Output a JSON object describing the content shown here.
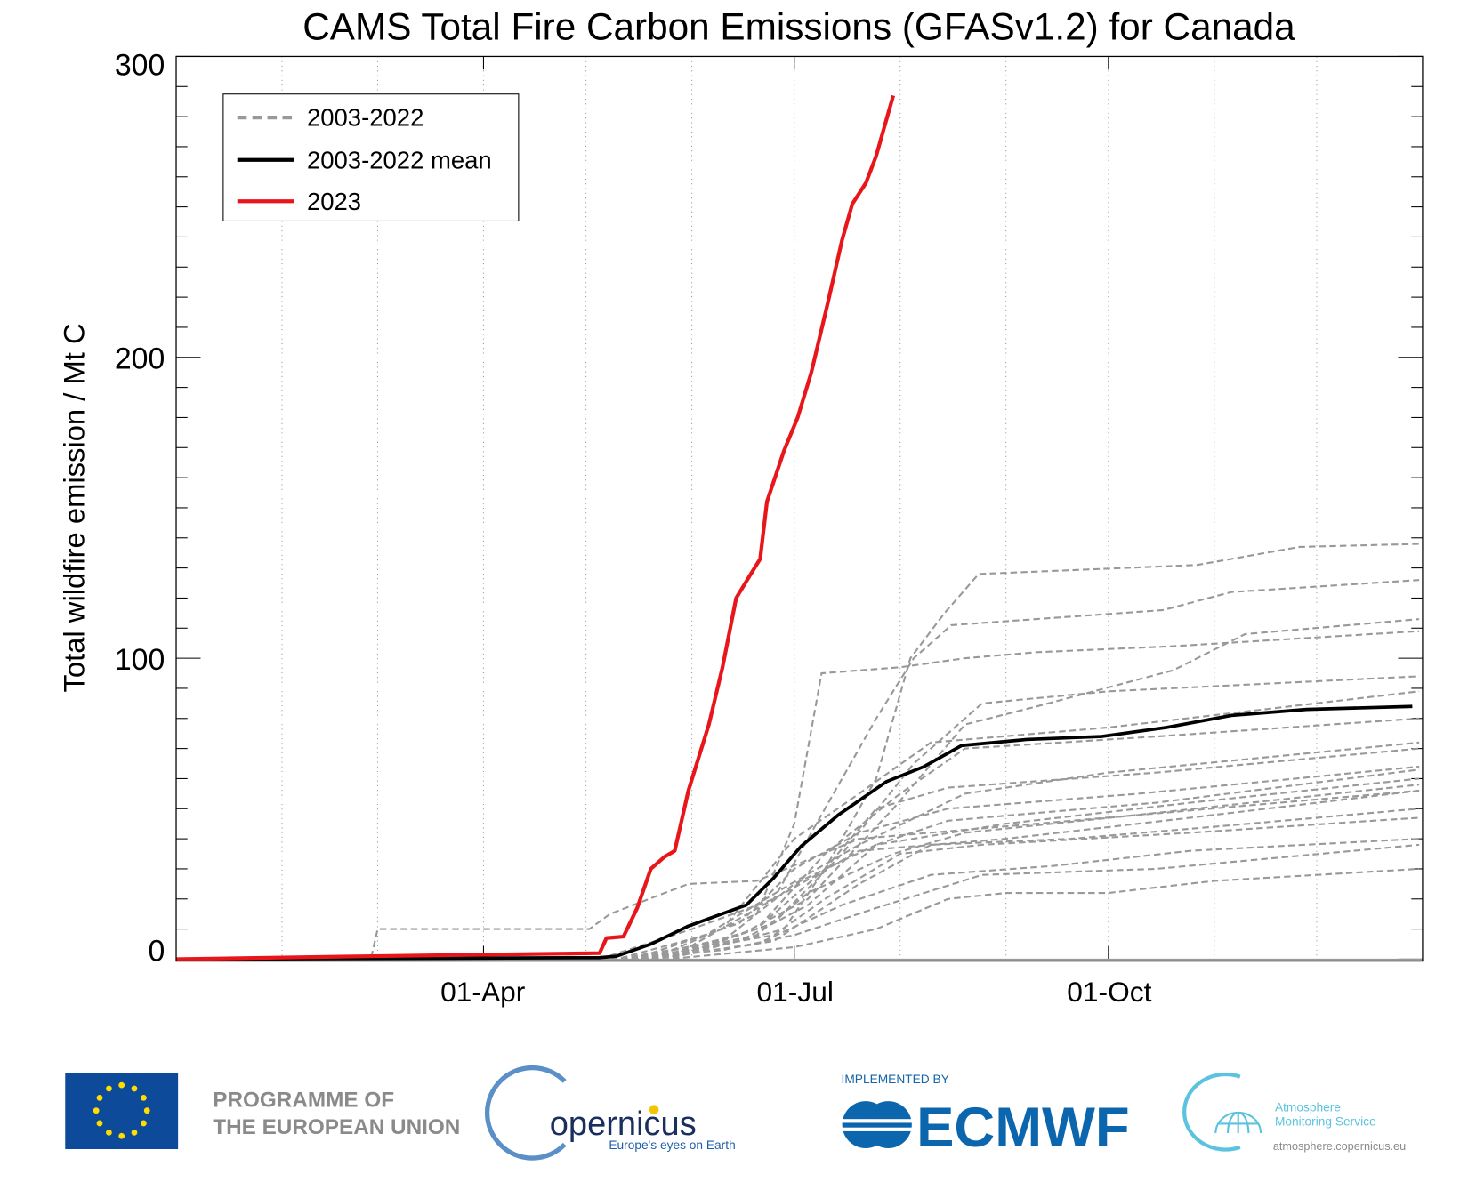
{
  "chart_data": {
    "type": "line",
    "title": "CAMS Total Fire Carbon Emissions (GFASv1.2) for Canada",
    "xlabel": "",
    "ylabel": "Total wildfire emission / Mt C",
    "x_format": "MM-DD",
    "xlim": [
      "01-01",
      "12-31"
    ],
    "ylim": [
      0,
      300
    ],
    "x_ticks": [
      "01-Apr",
      "01-Jul",
      "01-Oct"
    ],
    "y_ticks": [
      "0",
      "100",
      "200",
      "300"
    ],
    "grid": "vertical dotted lines at the first of each month",
    "legend": {
      "placement": "top-left",
      "entries": [
        "2003-2022",
        "2003-2022 mean",
        "2023"
      ]
    },
    "colors": {
      "past_years": "#999999",
      "mean": "#000000",
      "current": "#e8161b"
    },
    "series": [
      {
        "name": "2023",
        "style": "solid-red",
        "points": [
          [
            "01-01",
            0
          ],
          [
            "02-28",
            1
          ],
          [
            "05-05",
            2
          ],
          [
            "05-07",
            7
          ],
          [
            "05-12",
            7.5
          ],
          [
            "05-16",
            17
          ],
          [
            "05-20",
            30
          ],
          [
            "05-24",
            34
          ],
          [
            "05-27",
            36
          ],
          [
            "05-31",
            56
          ],
          [
            "06-06",
            78
          ],
          [
            "06-10",
            97
          ],
          [
            "06-14",
            120
          ],
          [
            "06-18",
            127.5
          ],
          [
            "06-21",
            133
          ],
          [
            "06-23",
            152
          ],
          [
            "06-28",
            169
          ],
          [
            "07-02",
            180
          ],
          [
            "07-06",
            195
          ],
          [
            "07-11",
            219
          ],
          [
            "07-15",
            239
          ],
          [
            "07-18",
            251
          ],
          [
            "07-22",
            258
          ],
          [
            "07-25",
            267
          ],
          [
            "07-27",
            275
          ],
          [
            "07-30",
            287
          ]
        ]
      },
      {
        "name": "2003-2022 mean",
        "style": "solid-black",
        "points": [
          [
            "01-01",
            0
          ],
          [
            "05-05",
            0.5
          ],
          [
            "05-10",
            1
          ],
          [
            "05-20",
            5
          ],
          [
            "05-31",
            11
          ],
          [
            "06-17",
            18
          ],
          [
            "06-25",
            27
          ],
          [
            "07-03",
            37.5
          ],
          [
            "07-14",
            48
          ],
          [
            "07-28",
            59
          ],
          [
            "08-08",
            64
          ],
          [
            "08-19",
            71
          ],
          [
            "09-07",
            73
          ],
          [
            "09-29",
            74
          ],
          [
            "10-18",
            77
          ],
          [
            "11-06",
            81
          ],
          [
            "11-28",
            83
          ],
          [
            "12-29",
            84
          ]
        ]
      },
      {
        "name": "2003-2022",
        "style": "dashed-grey",
        "years": [
          [
            [
              "01-01",
              0
            ],
            [
              "05-20",
              0
            ],
            [
              "06-20",
              10
            ],
            [
              "07-10",
              30
            ],
            [
              "07-25",
              60
            ],
            [
              "08-04",
              100
            ],
            [
              "08-14",
              115
            ],
            [
              "08-24",
              128
            ],
            [
              "10-27",
              131
            ],
            [
              "11-26",
              137
            ],
            [
              "12-31",
              138
            ]
          ],
          [
            [
              "01-01",
              0
            ],
            [
              "05-25",
              0
            ],
            [
              "06-25",
              20
            ],
            [
              "07-10",
              50
            ],
            [
              "07-25",
              80
            ],
            [
              "08-05",
              100
            ],
            [
              "08-16",
              111
            ],
            [
              "10-17",
              116
            ],
            [
              "11-06",
              122
            ],
            [
              "12-31",
              126
            ]
          ],
          [
            [
              "01-01",
              0
            ],
            [
              "05-15",
              0
            ],
            [
              "06-15",
              8
            ],
            [
              "07-05",
              20
            ],
            [
              "07-30",
              50
            ],
            [
              "08-20",
              78
            ],
            [
              "09-10",
              84
            ],
            [
              "10-20",
              96
            ],
            [
              "11-10",
              108
            ],
            [
              "12-31",
              113
            ]
          ],
          [
            [
              "01-01",
              0
            ],
            [
              "05-20",
              0
            ],
            [
              "06-20",
              15
            ],
            [
              "07-01",
              45
            ],
            [
              "07-09",
              95
            ],
            [
              "08-01",
              97
            ],
            [
              "08-20",
              100
            ],
            [
              "09-10",
              102
            ],
            [
              "10-20",
              104
            ],
            [
              "12-31",
              109
            ]
          ],
          [
            [
              "01-01",
              0
            ],
            [
              "05-25",
              0
            ],
            [
              "06-25",
              12
            ],
            [
              "07-15",
              35
            ],
            [
              "08-05",
              65
            ],
            [
              "08-25",
              85
            ],
            [
              "10-01",
              89
            ],
            [
              "12-31",
              94
            ]
          ],
          [
            [
              "01-01",
              0
            ],
            [
              "02-27",
              0
            ],
            [
              "03-01",
              10
            ],
            [
              "05-02",
              10
            ],
            [
              "05-08",
              15
            ],
            [
              "05-31",
              25
            ],
            [
              "06-20",
              26
            ],
            [
              "07-20",
              40
            ],
            [
              "09-10",
              45
            ],
            [
              "12-31",
              56
            ]
          ],
          [
            [
              "01-01",
              0
            ],
            [
              "05-15",
              0
            ],
            [
              "06-10",
              10
            ],
            [
              "07-01",
              40
            ],
            [
              "07-20",
              55
            ],
            [
              "08-10",
              72
            ],
            [
              "10-01",
              77
            ],
            [
              "12-31",
              89
            ]
          ],
          [
            [
              "01-01",
              0
            ],
            [
              "05-20",
              0
            ],
            [
              "06-20",
              10
            ],
            [
              "07-10",
              35
            ],
            [
              "08-01",
              55
            ],
            [
              "08-20",
              70
            ],
            [
              "10-15",
              74
            ],
            [
              "12-31",
              80
            ]
          ],
          [
            [
              "01-01",
              0
            ],
            [
              "05-10",
              0
            ],
            [
              "06-05",
              8
            ],
            [
              "06-30",
              25
            ],
            [
              "07-20",
              38
            ],
            [
              "08-20",
              55
            ],
            [
              "10-01",
              62
            ],
            [
              "12-31",
              72
            ]
          ],
          [
            [
              "01-01",
              0
            ],
            [
              "05-25",
              0
            ],
            [
              "06-28",
              10
            ],
            [
              "07-10",
              30
            ],
            [
              "07-25",
              50
            ],
            [
              "08-15",
              57
            ],
            [
              "10-15",
              62
            ],
            [
              "12-31",
              70
            ]
          ],
          [
            [
              "01-01",
              0
            ],
            [
              "05-15",
              0
            ],
            [
              "06-15",
              12
            ],
            [
              "07-01",
              30
            ],
            [
              "07-20",
              42
            ],
            [
              "08-15",
              50
            ],
            [
              "10-10",
              55
            ],
            [
              "12-31",
              64
            ]
          ],
          [
            [
              "01-01",
              0
            ],
            [
              "05-20",
              0
            ],
            [
              "06-15",
              6
            ],
            [
              "07-05",
              18
            ],
            [
              "07-25",
              38
            ],
            [
              "08-15",
              46
            ],
            [
              "10-15",
              52
            ],
            [
              "12-31",
              63
            ]
          ],
          [
            [
              "01-01",
              0
            ],
            [
              "05-10",
              0
            ],
            [
              "06-10",
              6
            ],
            [
              "07-01",
              25
            ],
            [
              "07-25",
              38
            ],
            [
              "09-01",
              45
            ],
            [
              "10-25",
              52
            ],
            [
              "12-31",
              60
            ]
          ],
          [
            [
              "01-01",
              0
            ],
            [
              "05-18",
              0
            ],
            [
              "06-20",
              8
            ],
            [
              "07-05",
              22
            ],
            [
              "07-30",
              35
            ],
            [
              "08-20",
              42
            ],
            [
              "10-10",
              48
            ],
            [
              "12-31",
              58
            ]
          ],
          [
            [
              "01-01",
              0
            ],
            [
              "05-05",
              0
            ],
            [
              "06-01",
              10
            ],
            [
              "06-25",
              20
            ],
            [
              "07-20",
              36
            ],
            [
              "09-01",
              40
            ],
            [
              "10-25",
              47
            ],
            [
              "12-31",
              56
            ]
          ],
          [
            [
              "01-01",
              0
            ],
            [
              "05-20",
              0
            ],
            [
              "06-25",
              6
            ],
            [
              "07-20",
              25
            ],
            [
              "08-10",
              38
            ],
            [
              "09-20",
              40
            ],
            [
              "11-01",
              44
            ],
            [
              "12-31",
              50
            ]
          ],
          [
            [
              "01-01",
              0
            ],
            [
              "05-15",
              0
            ],
            [
              "06-25",
              8
            ],
            [
              "07-10",
              20
            ],
            [
              "08-01",
              35
            ],
            [
              "08-25",
              38
            ],
            [
              "10-25",
              42
            ],
            [
              "12-31",
              47
            ]
          ],
          [
            [
              "01-01",
              0
            ],
            [
              "05-20",
              0
            ],
            [
              "06-20",
              5
            ],
            [
              "07-15",
              18
            ],
            [
              "08-10",
              28
            ],
            [
              "09-15",
              31
            ],
            [
              "10-25",
              36
            ],
            [
              "12-31",
              40
            ]
          ],
          [
            [
              "01-01",
              0
            ],
            [
              "05-25",
              0
            ],
            [
              "07-01",
              4
            ],
            [
              "07-25",
              10
            ],
            [
              "08-15",
              20
            ],
            [
              "09-01",
              22
            ],
            [
              "10-01",
              22
            ],
            [
              "11-01",
              26
            ],
            [
              "12-31",
              30
            ]
          ],
          [
            [
              "01-01",
              0
            ],
            [
              "05-10",
              0
            ],
            [
              "06-10",
              3
            ],
            [
              "07-01",
              8
            ],
            [
              "07-25",
              17
            ],
            [
              "08-25",
              28
            ],
            [
              "10-15",
              30
            ],
            [
              "12-31",
              38
            ]
          ]
        ]
      }
    ]
  },
  "footer": {
    "eu": {
      "line1": "PROGRAMME OF",
      "line2": "THE EUROPEAN UNION"
    },
    "copernicus": {
      "name": "opernicus",
      "tagline": "Europe's eyes on Earth"
    },
    "ecmwf": {
      "implemented_by": "IMPLEMENTED BY",
      "name": "ECMWF"
    },
    "cams": {
      "line1": "Atmosphere",
      "line2": "Monitoring Service",
      "url": "atmosphere.copernicus.eu"
    },
    "colors": {
      "eu_blue": "#0e4a9a",
      "eu_star": "#ffdd00",
      "copernicus_navy": "#1b2f5e",
      "ecmwf_blue": "#0b66ad",
      "cams_cyan": "#5bc3de"
    }
  }
}
